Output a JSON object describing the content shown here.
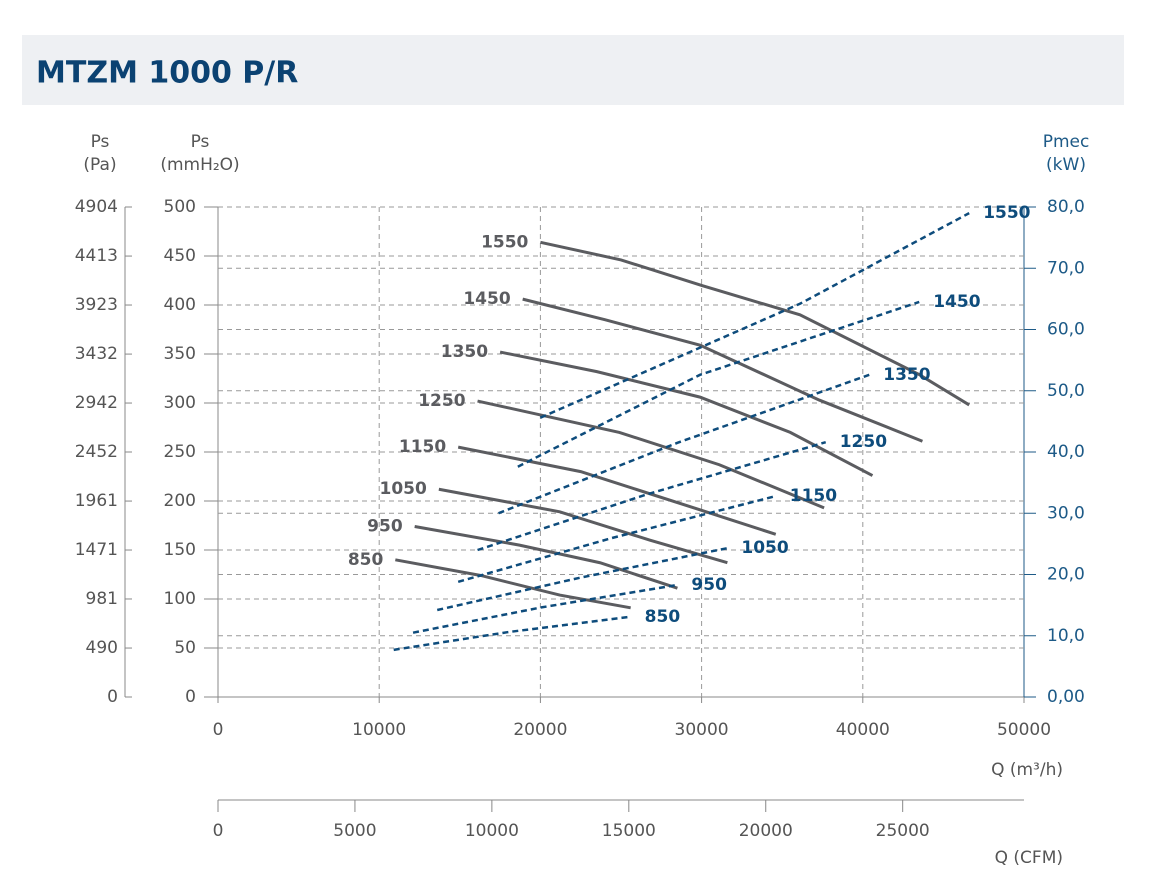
{
  "chart_data": {
    "type": "line",
    "title": "MTZM 1000 P/R",
    "y_pa_label": [
      "Ps",
      "(Pa)"
    ],
    "y_label": [
      "Ps",
      "(mmH₂O)"
    ],
    "y2_label": [
      "Pmec",
      "(kW)"
    ],
    "x_label": "Q (m³/h)",
    "x_cfm_label": "Q (CFM)",
    "xlim": [
      0,
      50000
    ],
    "xticks": [
      0,
      10000,
      20000,
      30000,
      40000,
      50000
    ],
    "ylim": [
      0,
      500
    ],
    "yticks": [
      0,
      50,
      100,
      150,
      200,
      250,
      300,
      350,
      400,
      450,
      500
    ],
    "y_pa_lim": [
      0,
      4904
    ],
    "y_pa_ticks": [
      0,
      490,
      981,
      1471,
      1961,
      2452,
      2942,
      3432,
      3923,
      4413,
      4904
    ],
    "y2lim": [
      0,
      80
    ],
    "y2ticks": [
      {
        "value": 0,
        "label": "0,00"
      },
      {
        "value": 10,
        "label": "10,0"
      },
      {
        "value": 20,
        "label": "20,0"
      },
      {
        "value": 30,
        "label": "30,0"
      },
      {
        "value": 40,
        "label": "40,0"
      },
      {
        "value": 50,
        "label": "50,0"
      },
      {
        "value": 60,
        "label": "60,0"
      },
      {
        "value": 70,
        "label": "70,0"
      },
      {
        "value": 80,
        "label": "80,0"
      }
    ],
    "x_cfm_lim": [
      0,
      29430
    ],
    "x_cfm_ticks": [
      0,
      5000,
      10000,
      15000,
      20000,
      25000
    ],
    "grid": true,
    "series": [
      {
        "name": "1550",
        "color": "#5b5c60",
        "x": [
          20000,
          25000,
          30000,
          36100,
          43500,
          46600
        ],
        "values": [
          464,
          446,
          420,
          390,
          329,
          298
        ]
      },
      {
        "name": "1450",
        "color": "#5b5c60",
        "x": [
          18900,
          24000,
          29900,
          37300,
          43700
        ],
        "values": [
          406,
          385,
          359,
          303,
          261
        ]
      },
      {
        "name": "1350",
        "color": "#5b5c60",
        "x": [
          17500,
          23500,
          29900,
          35500,
          40600
        ],
        "values": [
          352,
          332,
          306,
          270,
          226
        ]
      },
      {
        "name": "1250",
        "color": "#5b5c60",
        "x": [
          16100,
          24900,
          31100,
          37600
        ],
        "values": [
          302,
          270,
          237,
          193
        ]
      },
      {
        "name": "1150",
        "color": "#5b5c60",
        "x": [
          14900,
          22500,
          29900,
          34600
        ],
        "values": [
          255,
          230,
          191,
          166
        ]
      },
      {
        "name": "1050",
        "color": "#5b5c60",
        "x": [
          13700,
          21200,
          26800,
          31600
        ],
        "values": [
          212,
          189,
          160,
          137
        ]
      },
      {
        "name": "950",
        "color": "#5b5c60",
        "x": [
          12200,
          18700,
          23700,
          28500
        ],
        "values": [
          174,
          155,
          137,
          111
        ]
      },
      {
        "name": "850",
        "color": "#5b5c60",
        "x": [
          11000,
          16300,
          21200,
          25600
        ],
        "values": [
          140,
          124,
          104,
          91
        ]
      },
      {
        "name": "1550",
        "color": "#0e4c7c",
        "axis": "y2",
        "x": [
          20000,
          36100,
          46600
        ],
        "values": [
          45.6,
          64.2,
          79.0
        ]
      },
      {
        "name": "1450",
        "color": "#0e4c7c",
        "axis": "y2",
        "x": [
          18600,
          29900,
          43500
        ],
        "values": [
          37.6,
          52.6,
          64.5
        ]
      },
      {
        "name": "1350",
        "color": "#0e4c7c",
        "axis": "y2",
        "x": [
          17400,
          28500,
          40400
        ],
        "values": [
          30.0,
          41.5,
          52.6
        ]
      },
      {
        "name": "1250",
        "color": "#0e4c7c",
        "axis": "y2",
        "x": [
          16100,
          26500,
          37700
        ],
        "values": [
          24.0,
          33.0,
          41.6
        ]
      },
      {
        "name": "1150",
        "color": "#0e4c7c",
        "axis": "y2",
        "x": [
          14900,
          24500,
          34600
        ],
        "values": [
          18.8,
          26.0,
          32.8
        ]
      },
      {
        "name": "1050",
        "color": "#0e4c7c",
        "axis": "y2",
        "x": [
          13600,
          22500,
          31600
        ],
        "values": [
          14.2,
          19.5,
          24.3
        ]
      },
      {
        "name": "950",
        "color": "#0e4c7c",
        "axis": "y2",
        "x": [
          12100,
          20000,
          28500
        ],
        "values": [
          10.5,
          14.6,
          18.3
        ]
      },
      {
        "name": "850",
        "color": "#0e4c7c",
        "axis": "y2",
        "x": [
          10900,
          18000,
          25600
        ],
        "values": [
          7.7,
          10.6,
          13.1
        ]
      }
    ]
  }
}
